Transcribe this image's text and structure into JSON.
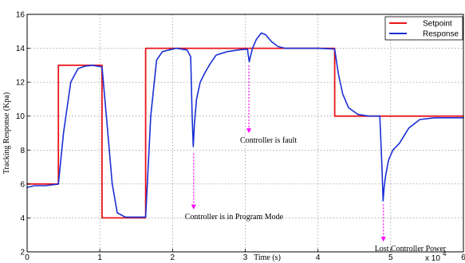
{
  "chart_data": {
    "type": "line",
    "title": "",
    "xlabel": "Time (s)",
    "ylabel": "Tracking Response (Kpa)",
    "x_multiplier": "x 10",
    "x_multiplier_exp": "4",
    "xlim": [
      0,
      60000
    ],
    "ylim": [
      2,
      16
    ],
    "xticks": [
      0,
      10000,
      20000,
      30000,
      40000,
      50000,
      60000
    ],
    "xtick_labels": [
      "0",
      "1",
      "2",
      "3",
      "4",
      "5",
      "6"
    ],
    "yticks": [
      2,
      4,
      6,
      8,
      10,
      12,
      14,
      16
    ],
    "grid": true,
    "legend_position": "top-right",
    "series": [
      {
        "name": "Setpoint",
        "color": "#e8141a",
        "shape": "step",
        "x": [
          0,
          4300,
          4300,
          10300,
          10300,
          16300,
          16300,
          42300,
          42300,
          60000
        ],
        "y": [
          6,
          6,
          13,
          13,
          4,
          4,
          14,
          14,
          10,
          10
        ]
      },
      {
        "name": "Response",
        "color": "#1a2fd6",
        "shape": "line",
        "x": [
          0,
          1000,
          2500,
          4300,
          5000,
          6000,
          7000,
          8000,
          9000,
          10300,
          11000,
          11700,
          12400,
          13500,
          16300,
          17000,
          17800,
          18600,
          19500,
          20500,
          22000,
          22500,
          22700,
          22850,
          23000,
          23300,
          23800,
          24500,
          25200,
          26000,
          27500,
          29000,
          30300,
          30550,
          30700,
          31000,
          31500,
          32200,
          32800,
          33600,
          34500,
          35500,
          37000,
          40000,
          42300,
          42800,
          43400,
          44200,
          45500,
          47000,
          48500,
          48800,
          48950,
          49100,
          49300,
          49700,
          50300,
          51200,
          52500,
          54000,
          56000,
          60000
        ],
        "y": [
          5.8,
          5.9,
          5.9,
          6.0,
          9.0,
          12.0,
          12.8,
          12.95,
          13.0,
          12.9,
          9.5,
          6.0,
          4.3,
          4.05,
          4.05,
          10.0,
          13.3,
          13.8,
          13.9,
          14.0,
          13.9,
          13.5,
          10.0,
          8.2,
          9.5,
          11.0,
          12.0,
          12.6,
          13.1,
          13.6,
          13.8,
          13.9,
          13.95,
          13.2,
          13.5,
          14.0,
          14.5,
          14.9,
          14.8,
          14.4,
          14.1,
          14.0,
          14.0,
          14.0,
          13.95,
          12.5,
          11.3,
          10.5,
          10.1,
          10.0,
          10.0,
          7.0,
          5.0,
          5.8,
          6.5,
          7.4,
          8.0,
          8.4,
          9.3,
          9.8,
          9.9,
          9.9
        ]
      }
    ],
    "annotations": [
      {
        "text": "Controller is in Program  Mode",
        "arrow_x": 22900,
        "arrow_y_top": 7.8,
        "arrow_y_bottom": 4.5
      },
      {
        "text": "Controller is fault",
        "arrow_x": 30500,
        "arrow_y_top": 13.0,
        "arrow_y_bottom": 9.0
      },
      {
        "text": "Lost Controller Power",
        "arrow_x": 49000,
        "arrow_y_top": 4.8,
        "arrow_y_bottom": 2.6
      }
    ],
    "annotation_color": "#ff00ff"
  }
}
